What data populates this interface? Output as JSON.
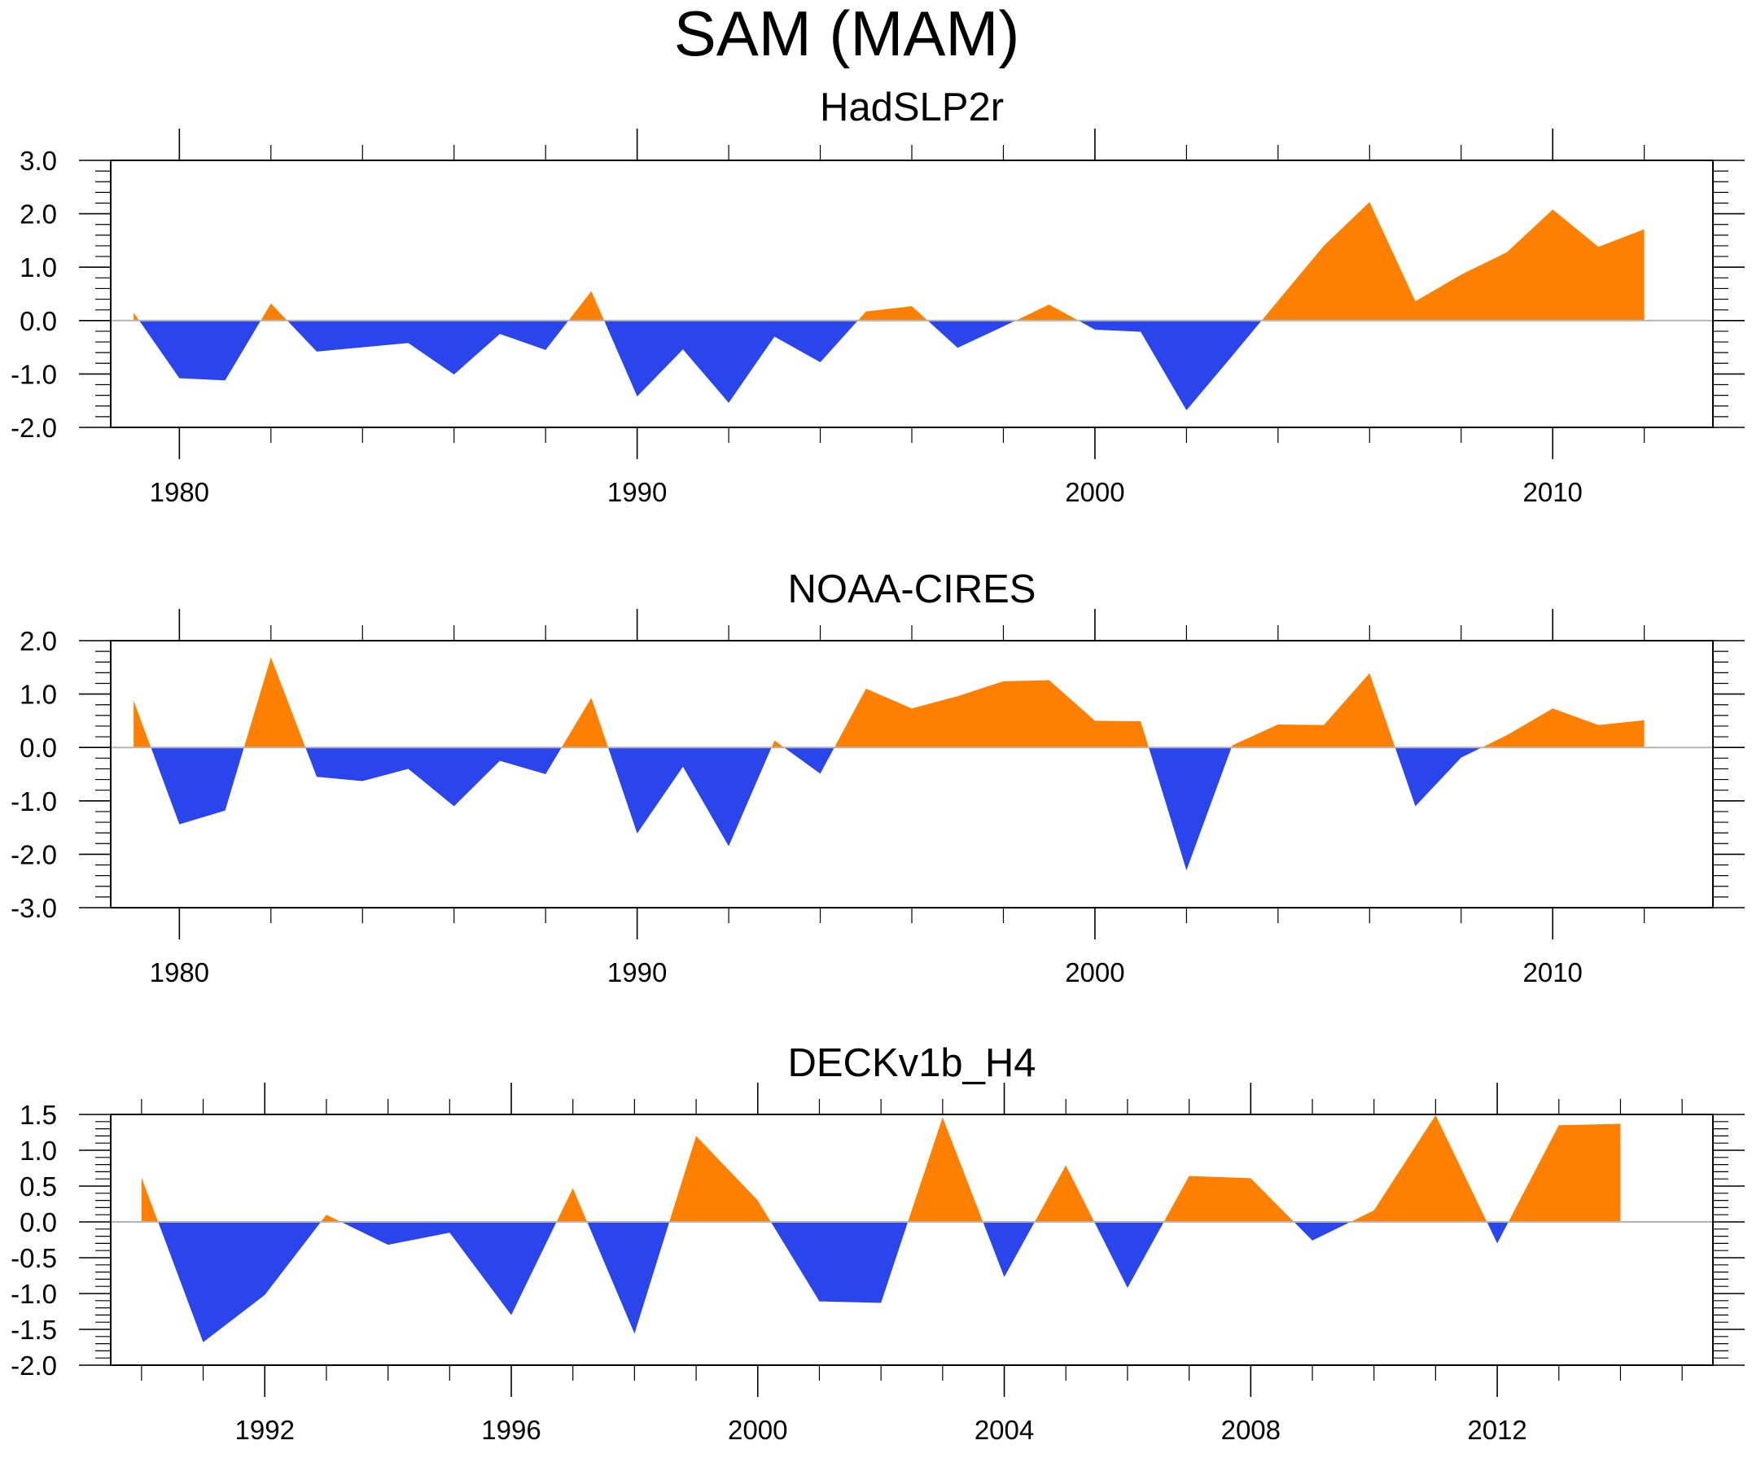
{
  "chart_data": {
    "title": "SAM (MAM)",
    "type": "area",
    "colors": {
      "positive": "#FF8000",
      "negative": "#2945EB",
      "zero_line": "#B4B4B4",
      "frame": "#000000"
    },
    "panels": [
      {
        "type": "area",
        "title": "HadSLP2r",
        "xlabel": "",
        "ylabel": "",
        "xlim": [
          1978.5,
          2013.5
        ],
        "ylim": [
          -2.0,
          3.0
        ],
        "x_major_ticks": [
          1980,
          1990,
          2000,
          2010
        ],
        "x_tick_labels": [
          "1980",
          "1990",
          "2000",
          "2010"
        ],
        "x_minor_step": 2,
        "y_major_ticks": [
          -2.0,
          -1.0,
          0.0,
          1.0,
          2.0,
          3.0
        ],
        "y_tick_labels": [
          "-2.0",
          "-1.0",
          "0.0",
          "1.0",
          "2.0",
          "3.0"
        ],
        "y_minor_step": 0.2,
        "grid": false,
        "x": [
          1979,
          1980,
          1981,
          1982,
          1983,
          1984,
          1985,
          1986,
          1987,
          1988,
          1989,
          1990,
          1991,
          1992,
          1993,
          1994,
          1995,
          1996,
          1997,
          1998,
          1999,
          2000,
          2001,
          2002,
          2003,
          2004,
          2005,
          2006,
          2007,
          2008,
          2009,
          2010,
          2011,
          2012
        ],
        "values": [
          0.15,
          -1.08,
          -1.12,
          0.32,
          -0.58,
          -0.5,
          -0.42,
          -1.01,
          -0.25,
          -0.55,
          0.55,
          -1.42,
          -0.54,
          -1.54,
          -0.3,
          -0.78,
          0.17,
          0.27,
          -0.51,
          -0.11,
          0.3,
          -0.17,
          -0.21,
          -1.68,
          -0.66,
          0.37,
          1.4,
          2.22,
          0.36,
          0.86,
          1.28,
          2.08,
          1.38,
          1.71
        ]
      },
      {
        "type": "area",
        "title": "NOAA-CIRES",
        "xlabel": "",
        "ylabel": "",
        "xlim": [
          1978.5,
          2013.5
        ],
        "ylim": [
          -3.0,
          2.0
        ],
        "x_major_ticks": [
          1980,
          1990,
          2000,
          2010
        ],
        "x_tick_labels": [
          "1980",
          "1990",
          "2000",
          "2010"
        ],
        "x_minor_step": 2,
        "y_major_ticks": [
          -3.0,
          -2.0,
          -1.0,
          0.0,
          1.0,
          2.0
        ],
        "y_tick_labels": [
          "-3.0",
          "-2.0",
          "-1.0",
          "0.0",
          "1.0",
          "2.0"
        ],
        "y_minor_step": 0.2,
        "grid": false,
        "x": [
          1979,
          1980,
          1981,
          1982,
          1983,
          1984,
          1985,
          1986,
          1987,
          1988,
          1989,
          1990,
          1991,
          1992,
          1993,
          1994,
          1995,
          1996,
          1997,
          1998,
          1999,
          2000,
          2001,
          2002,
          2003,
          2004,
          2005,
          2006,
          2007,
          2008,
          2009,
          2010,
          2011,
          2012
        ],
        "values": [
          0.88,
          -1.44,
          -1.18,
          1.69,
          -0.55,
          -0.63,
          -0.4,
          -1.1,
          -0.25,
          -0.5,
          0.93,
          -1.61,
          -0.36,
          -1.85,
          0.13,
          -0.49,
          1.1,
          0.73,
          0.96,
          1.24,
          1.26,
          0.5,
          0.49,
          -2.3,
          0.04,
          0.43,
          0.42,
          1.39,
          -1.1,
          -0.19,
          0.23,
          0.73,
          0.42,
          0.51
        ]
      },
      {
        "type": "area",
        "title": "DECKv1b_H4",
        "xlabel": "",
        "ylabel": "",
        "xlim": [
          1989.5,
          2015.5
        ],
        "ylim": [
          -2.0,
          1.5
        ],
        "x_major_ticks": [
          1992,
          1996,
          2000,
          2004,
          2008,
          2012
        ],
        "x_tick_labels": [
          "1992",
          "1996",
          "2000",
          "2004",
          "2008",
          "2012"
        ],
        "x_minor_step": 1,
        "y_major_ticks": [
          -2.0,
          -1.5,
          -1.0,
          -0.5,
          0.0,
          0.5,
          1.0,
          1.5
        ],
        "y_tick_labels": [
          "-2.0",
          "-1.5",
          "-1.0",
          "-0.5",
          "0.0",
          "0.5",
          "1.0",
          "1.5"
        ],
        "y_minor_step": 0.1,
        "grid": false,
        "x": [
          1990,
          1991,
          1992,
          1993,
          1994,
          1995,
          1996,
          1997,
          1998,
          1999,
          2000,
          2001,
          2002,
          2003,
          2004,
          2005,
          2006,
          2007,
          2008,
          2009,
          2010,
          2011,
          2012,
          2013,
          2014
        ],
        "values": [
          0.62,
          -1.68,
          -1.02,
          0.1,
          -0.32,
          -0.15,
          -1.3,
          0.47,
          -1.56,
          1.2,
          0.3,
          -1.11,
          -1.13,
          1.46,
          -0.77,
          0.79,
          -0.92,
          0.64,
          0.61,
          -0.26,
          0.16,
          1.49,
          -0.3,
          1.35,
          1.37
        ]
      }
    ]
  }
}
